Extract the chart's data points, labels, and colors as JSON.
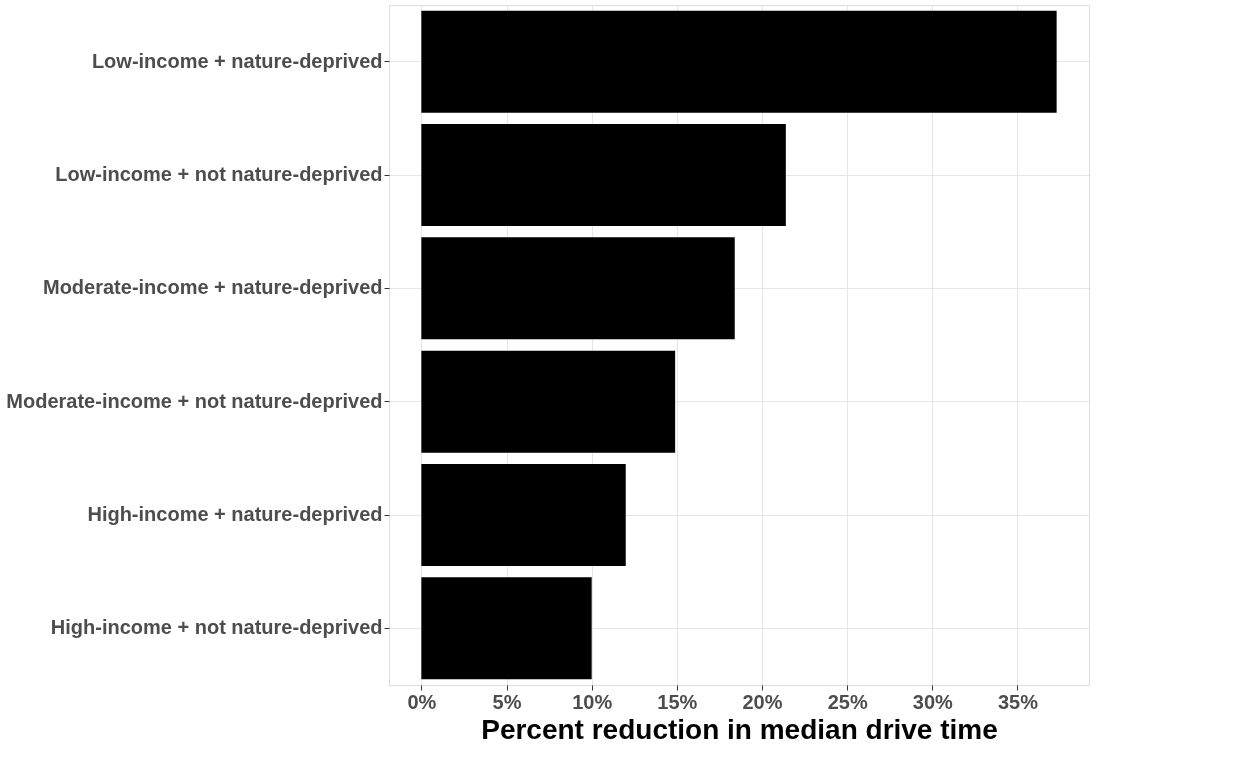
{
  "chart_data": {
    "type": "bar",
    "orientation": "horizontal",
    "xlabel": "Percent reduction in median drive time",
    "categories": [
      "Low-income + nature-deprived",
      "Low-income + not nature-deprived",
      "Moderate-income + nature-deprived",
      "Moderate-income + not nature-deprived",
      "High-income + nature-deprived",
      "High-income + not nature-deprived"
    ],
    "values": [
      37.3,
      21.4,
      18.4,
      14.9,
      12.0,
      10.0
    ],
    "color": "#000000",
    "xlim": [
      -1.9,
      39.2
    ],
    "xticks": [
      {
        "value": 0,
        "label": "0%"
      },
      {
        "value": 5,
        "label": "5%"
      },
      {
        "value": 10,
        "label": "10%"
      },
      {
        "value": 15,
        "label": "15%"
      },
      {
        "value": 20,
        "label": "20%"
      },
      {
        "value": 25,
        "label": "25%"
      },
      {
        "value": 30,
        "label": "30%"
      },
      {
        "value": 35,
        "label": "35%"
      }
    ],
    "grid": true
  }
}
